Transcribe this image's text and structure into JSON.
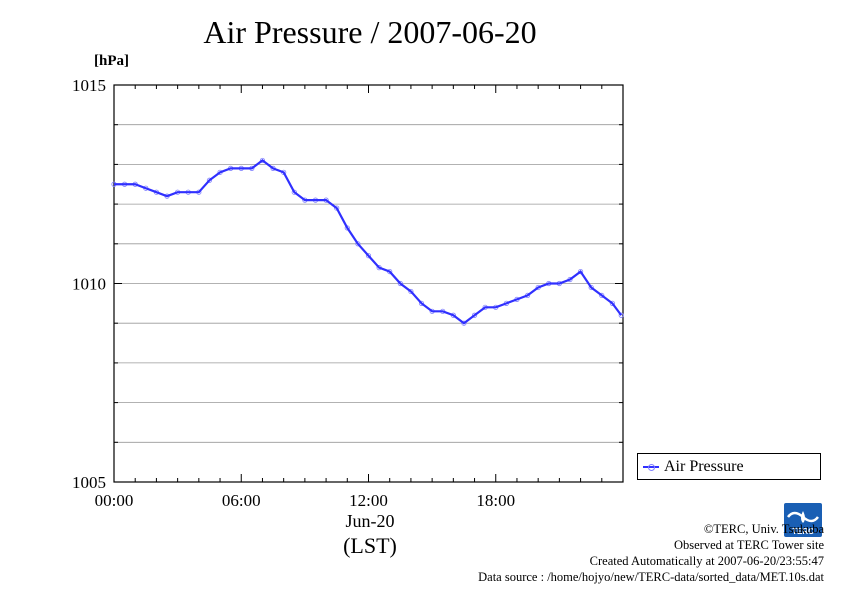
{
  "title": "Air Pressure / 2007-06-20",
  "unit_label": "[hPa]",
  "x_axis": {
    "ticks": [
      "00:00",
      "06:00",
      "12:00",
      "18:00"
    ],
    "date_label": "Jun-20",
    "zone_label": "(LST)"
  },
  "legend": {
    "label": "Air Pressure"
  },
  "credits": {
    "line1": "©TERC, Univ. Tsukuba",
    "line2": "Observed at TERC Tower site",
    "line3": "Created Automatically at 2007-06-20/23:55:47",
    "line4": "Data source : /home/hojyo/new/TERC-data/sorted_data/MET.10s.dat"
  },
  "logo_text": "TERC",
  "colors": {
    "series": "#3030ff",
    "markers": "#8080ff",
    "grid": "#999999"
  },
  "chart_data": {
    "type": "line",
    "title": "Air Pressure / 2007-06-20",
    "ylabel": "[hPa]",
    "xlabel": "Jun-20 (LST)",
    "xlim": [
      "00:00",
      "24:00"
    ],
    "ylim": [
      1005,
      1015
    ],
    "yticks": [
      1005,
      1010,
      1015
    ],
    "grid": true,
    "legend_position": "outside-right-bottom",
    "series": [
      {
        "name": "Air Pressure",
        "x": [
          "00:00",
          "00:30",
          "01:00",
          "01:30",
          "02:00",
          "02:30",
          "03:00",
          "03:30",
          "04:00",
          "04:30",
          "05:00",
          "05:30",
          "06:00",
          "06:30",
          "07:00",
          "07:30",
          "08:00",
          "08:30",
          "09:00",
          "09:30",
          "10:00",
          "10:30",
          "11:00",
          "11:30",
          "12:00",
          "12:30",
          "13:00",
          "13:30",
          "14:00",
          "14:30",
          "15:00",
          "15:30",
          "16:00",
          "16:30",
          "17:00",
          "17:30",
          "18:00",
          "18:30",
          "19:00",
          "19:30",
          "20:00",
          "20:30",
          "21:00",
          "21:30",
          "22:00",
          "22:30",
          "23:00",
          "23:30",
          "23:55"
        ],
        "values": [
          1012.5,
          1012.5,
          1012.5,
          1012.4,
          1012.3,
          1012.2,
          1012.3,
          1012.3,
          1012.3,
          1012.6,
          1012.8,
          1012.9,
          1012.9,
          1012.9,
          1013.1,
          1012.9,
          1012.8,
          1012.3,
          1012.1,
          1012.1,
          1012.1,
          1011.9,
          1011.4,
          1011.0,
          1010.7,
          1010.4,
          1010.3,
          1010.0,
          1009.8,
          1009.5,
          1009.3,
          1009.3,
          1009.2,
          1009.0,
          1009.2,
          1009.4,
          1009.4,
          1009.5,
          1009.6,
          1009.7,
          1009.9,
          1010.0,
          1010.0,
          1010.1,
          1010.3,
          1009.9,
          1009.7,
          1009.5,
          1009.2
        ]
      }
    ]
  }
}
